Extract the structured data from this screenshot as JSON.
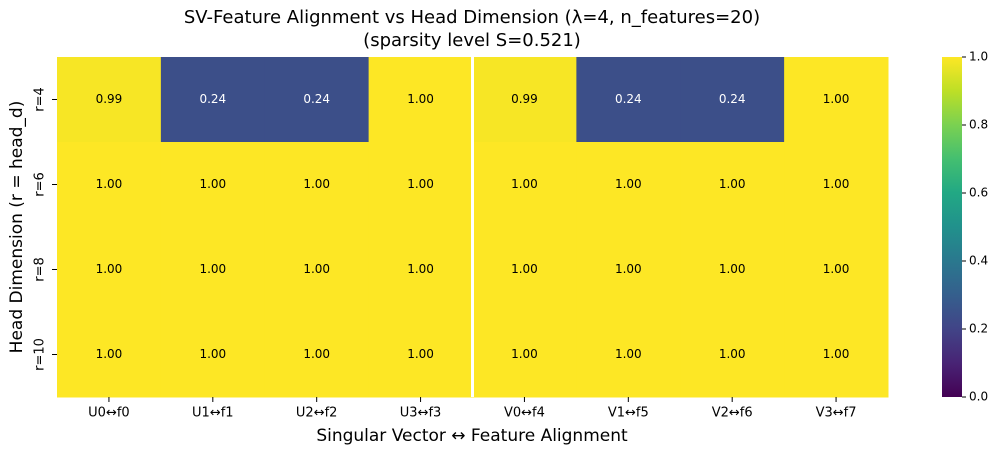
{
  "chart_data": {
    "type": "heatmap",
    "title": "SV-Feature Alignment vs Head Dimension (λ=4, n_features=20)",
    "subtitle": "(sparsity level S=0.521)",
    "xlabel": "Singular Vector ↔ Feature Alignment",
    "ylabel": "Head Dimension (r = head_d)",
    "categories": [
      "U0↔f0",
      "U1↔f1",
      "U2↔f2",
      "U3↔f3",
      "V0↔f4",
      "V1↔f5",
      "V2↔f6",
      "V3↔f7"
    ],
    "y_categories": [
      "r=4",
      "r=6",
      "r=8",
      "r=10"
    ],
    "values": [
      [
        0.99,
        0.24,
        0.24,
        1.0,
        0.99,
        0.24,
        0.24,
        1.0
      ],
      [
        1.0,
        1.0,
        1.0,
        1.0,
        1.0,
        1.0,
        1.0,
        1.0
      ],
      [
        1.0,
        1.0,
        1.0,
        1.0,
        1.0,
        1.0,
        1.0,
        1.0
      ],
      [
        1.0,
        1.0,
        1.0,
        1.0,
        1.0,
        1.0,
        1.0,
        1.0
      ]
    ],
    "value_labels": [
      [
        "0.99",
        "0.24",
        "0.24",
        "1.00",
        "0.99",
        "0.24",
        "0.24",
        "1.00"
      ],
      [
        "1.00",
        "1.00",
        "1.00",
        "1.00",
        "1.00",
        "1.00",
        "1.00",
        "1.00"
      ],
      [
        "1.00",
        "1.00",
        "1.00",
        "1.00",
        "1.00",
        "1.00",
        "1.00",
        "1.00"
      ],
      [
        "1.00",
        "1.00",
        "1.00",
        "1.00",
        "1.00",
        "1.00",
        "1.00",
        "1.00"
      ]
    ],
    "colormap": "viridis",
    "zlim": [
      0,
      1
    ],
    "zticks": [
      {
        "value": 0,
        "label": "0.0"
      },
      {
        "value": 0.2,
        "label": "0.2"
      },
      {
        "value": 0.4,
        "label": "0.4"
      },
      {
        "value": 0.6,
        "label": "0.6"
      },
      {
        "value": 0.8,
        "label": "0.8"
      },
      {
        "value": 1,
        "label": "1.0"
      }
    ],
    "divider_index": 4
  }
}
